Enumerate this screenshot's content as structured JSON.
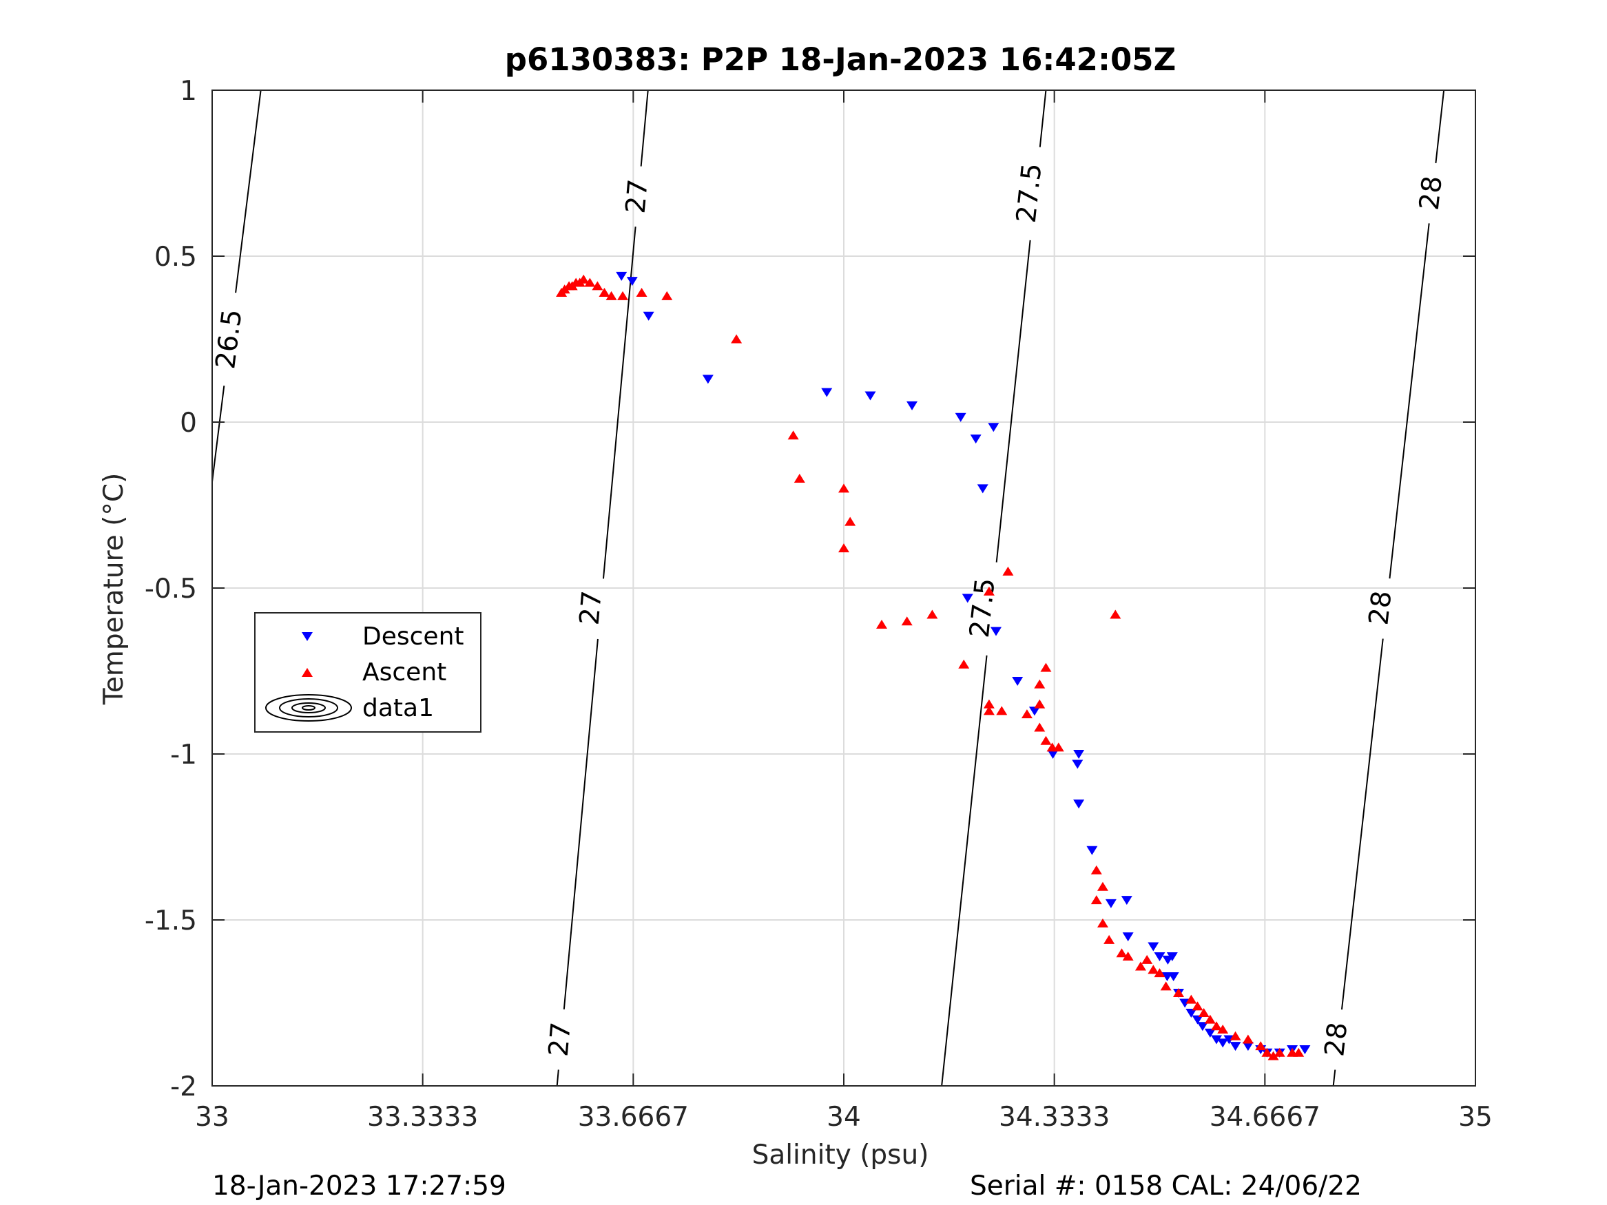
{
  "chart_data": {
    "type": "scatter",
    "title": "p6130383: P2P 18-Jan-2023 16:42:05Z",
    "xlabel": "Salinity (psu)",
    "ylabel": "Temperature (°C)",
    "xlim": [
      33,
      35
    ],
    "ylim": [
      -2,
      1
    ],
    "x_ticks": [
      "33",
      "33.3333",
      "33.6667",
      "34",
      "34.3333",
      "34.6667",
      "35"
    ],
    "y_ticks": [
      "1",
      "0.5",
      "0",
      "-0.5",
      "-1",
      "-1.5",
      "-2"
    ],
    "grid": true,
    "legend_position": "left-middle",
    "legend": [
      "Descent",
      "Ascent",
      "data1"
    ],
    "footer_left": "18-Jan-2023 17:27:59",
    "footer_right": "Serial #: 0158  CAL: 24/06/22",
    "colors": {
      "descent": "#0000ff",
      "ascent": "#ff0000",
      "contour": "#000000",
      "grid": "#dcdcdc"
    },
    "contours": [
      {
        "label": "26.5",
        "points": [
          [
            33.0,
            -0.18
          ],
          [
            33.077,
            1.0
          ]
        ],
        "label_positions": [
          [
            33.027,
            0.25
          ]
        ]
      },
      {
        "label": "27",
        "points": [
          [
            33.546,
            -2.0
          ],
          [
            33.69,
            1.0
          ]
        ],
        "label_positions": [
          [
            33.551,
            -1.86
          ],
          [
            33.6,
            -0.56
          ],
          [
            33.673,
            0.68
          ]
        ]
      },
      {
        "label": "27.5",
        "points": [
          [
            34.155,
            -2.0
          ],
          [
            34.32,
            1.0
          ]
        ],
        "label_positions": [
          [
            34.22,
            -0.56
          ],
          [
            34.294,
            0.69
          ]
        ]
      },
      {
        "label": "28",
        "points": [
          [
            34.775,
            -2.0
          ],
          [
            34.95,
            1.0
          ]
        ],
        "label_positions": [
          [
            34.78,
            -1.86
          ],
          [
            34.85,
            -0.56
          ],
          [
            34.93,
            0.69
          ]
        ]
      }
    ],
    "series": [
      {
        "name": "Descent",
        "marker": "triangle-down",
        "points": [
          [
            33.648,
            0.44
          ],
          [
            33.665,
            0.425
          ],
          [
            33.691,
            0.32
          ],
          [
            33.785,
            0.13
          ],
          [
            33.973,
            0.09
          ],
          [
            34.042,
            0.08
          ],
          [
            34.108,
            0.05
          ],
          [
            34.185,
            0.015
          ],
          [
            34.209,
            -0.05
          ],
          [
            34.237,
            -0.015
          ],
          [
            34.22,
            -0.2
          ],
          [
            34.196,
            -0.53
          ],
          [
            34.241,
            -0.63
          ],
          [
            34.275,
            -0.78
          ],
          [
            34.302,
            -0.87
          ],
          [
            34.331,
            -1.0
          ],
          [
            34.372,
            -1.0
          ],
          [
            34.37,
            -1.03
          ],
          [
            34.372,
            -1.15
          ],
          [
            34.393,
            -1.29
          ],
          [
            34.423,
            -1.45
          ],
          [
            34.448,
            -1.44
          ],
          [
            34.45,
            -1.55
          ],
          [
            34.49,
            -1.58
          ],
          [
            34.5,
            -1.61
          ],
          [
            34.513,
            -1.62
          ],
          [
            34.52,
            -1.61
          ],
          [
            34.522,
            -1.67
          ],
          [
            34.512,
            -1.67
          ],
          [
            34.53,
            -1.72
          ],
          [
            34.54,
            -1.75
          ],
          [
            34.55,
            -1.78
          ],
          [
            34.56,
            -1.8
          ],
          [
            34.568,
            -1.82
          ],
          [
            34.58,
            -1.84
          ],
          [
            34.59,
            -1.86
          ],
          [
            34.6,
            -1.87
          ],
          [
            34.61,
            -1.86
          ],
          [
            34.62,
            -1.88
          ],
          [
            34.64,
            -1.88
          ],
          [
            34.66,
            -1.89
          ],
          [
            34.67,
            -1.9
          ],
          [
            34.69,
            -1.9
          ],
          [
            34.71,
            -1.89
          ],
          [
            34.73,
            -1.89
          ]
        ]
      },
      {
        "name": "Ascent",
        "marker": "triangle-up",
        "points": [
          [
            33.553,
            0.39
          ],
          [
            33.558,
            0.4
          ],
          [
            33.565,
            0.41
          ],
          [
            33.57,
            0.41
          ],
          [
            33.576,
            0.42
          ],
          [
            33.582,
            0.42
          ],
          [
            33.588,
            0.43
          ],
          [
            33.598,
            0.42
          ],
          [
            33.61,
            0.41
          ],
          [
            33.621,
            0.39
          ],
          [
            33.632,
            0.38
          ],
          [
            33.65,
            0.38
          ],
          [
            33.68,
            0.39
          ],
          [
            33.72,
            0.38
          ],
          [
            33.83,
            0.25
          ],
          [
            33.92,
            -0.04
          ],
          [
            33.93,
            -0.17
          ],
          [
            34.0,
            -0.2
          ],
          [
            34.01,
            -0.3
          ],
          [
            34.0,
            -0.38
          ],
          [
            34.06,
            -0.61
          ],
          [
            34.1,
            -0.6
          ],
          [
            34.14,
            -0.58
          ],
          [
            34.19,
            -0.73
          ],
          [
            34.23,
            -0.51
          ],
          [
            34.26,
            -0.45
          ],
          [
            34.23,
            -0.85
          ],
          [
            34.23,
            -0.87
          ],
          [
            34.25,
            -0.87
          ],
          [
            34.29,
            -0.88
          ],
          [
            34.31,
            -0.79
          ],
          [
            34.31,
            -0.85
          ],
          [
            34.32,
            -0.74
          ],
          [
            34.31,
            -0.92
          ],
          [
            34.32,
            -0.96
          ],
          [
            34.33,
            -0.98
          ],
          [
            34.34,
            -0.98
          ],
          [
            34.43,
            -0.58
          ],
          [
            34.4,
            -1.35
          ],
          [
            34.41,
            -1.4
          ],
          [
            34.4,
            -1.44
          ],
          [
            34.41,
            -1.51
          ],
          [
            34.42,
            -1.56
          ],
          [
            34.44,
            -1.6
          ],
          [
            34.45,
            -1.61
          ],
          [
            34.47,
            -1.64
          ],
          [
            34.48,
            -1.62
          ],
          [
            34.49,
            -1.65
          ],
          [
            34.5,
            -1.66
          ],
          [
            34.51,
            -1.7
          ],
          [
            34.53,
            -1.72
          ],
          [
            34.55,
            -1.74
          ],
          [
            34.56,
            -1.76
          ],
          [
            34.57,
            -1.78
          ],
          [
            34.58,
            -1.8
          ],
          [
            34.59,
            -1.82
          ],
          [
            34.6,
            -1.83
          ],
          [
            34.62,
            -1.85
          ],
          [
            34.64,
            -1.86
          ],
          [
            34.66,
            -1.88
          ],
          [
            34.67,
            -1.9
          ],
          [
            34.68,
            -1.91
          ],
          [
            34.69,
            -1.9
          ],
          [
            34.71,
            -1.9
          ],
          [
            34.72,
            -1.9
          ]
        ]
      }
    ]
  }
}
